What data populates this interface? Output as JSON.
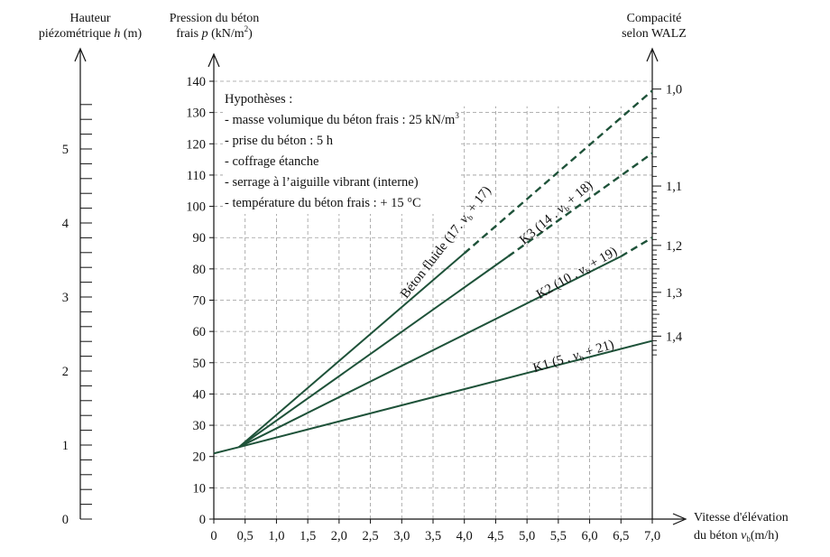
{
  "chart_data": {
    "type": "line",
    "x_axis": {
      "label_line1": "Vitesse d'élévation",
      "label_line2_prefix": "du béton ",
      "label_var": "v",
      "label_sub": "b",
      "label_unit": "(m/h)",
      "ticks": [
        "0",
        "0,5",
        "1,0",
        "1,5",
        "2,0",
        "2,5",
        "3,0",
        "3,5",
        "4,0",
        "4,5",
        "5,0",
        "5,5",
        "6,0",
        "6,5",
        "7,0"
      ],
      "range": [
        0,
        7.0
      ]
    },
    "y_axis": {
      "label_line1": "Pression du béton",
      "label_line2_prefix": "frais ",
      "label_var": "p",
      "label_unit_pre": " (kN/m",
      "label_unit_sup": "2",
      "label_unit_post": ")",
      "ticks": [
        "0",
        "10",
        "20",
        "30",
        "40",
        "50",
        "60",
        "70",
        "80",
        "90",
        "100",
        "110",
        "120",
        "130",
        "140"
      ],
      "range": [
        0,
        140
      ]
    },
    "left_axis": {
      "label_line1": "Hauteur",
      "label_line2_prefix": "piézométrique ",
      "label_var": "h",
      "label_unit": " (m)",
      "ticks": [
        "0",
        "1",
        "2",
        "3",
        "4",
        "5"
      ],
      "range": [
        0,
        5.6
      ]
    },
    "right_axis": {
      "label_line1": "Compacité",
      "label_line2": "selon WALZ",
      "ticks": [
        {
          "label": "1,0",
          "p": 137.5
        },
        {
          "label": "1,1",
          "p": 106.5
        },
        {
          "label": "1,2",
          "p": 87.5
        },
        {
          "label": "1,3",
          "p": 72.5
        },
        {
          "label": "1,4",
          "p": 58.5
        }
      ]
    },
    "grid": true,
    "base_line": {
      "x": [
        0,
        0.4
      ],
      "y": [
        21,
        23
      ]
    },
    "series": [
      {
        "name": "Béton fluide",
        "formula_coef": "17",
        "formula_const": "17",
        "x": [
          0.4,
          4.0
        ],
        "y": [
          23,
          85
        ],
        "dashed_x": [
          4.0,
          7.0
        ],
        "dashed_y": [
          85,
          137
        ]
      },
      {
        "name": "K3",
        "formula_coef": "14",
        "formula_const": "18",
        "x": [
          0.4,
          4.7
        ],
        "y": [
          23,
          84
        ],
        "dashed_x": [
          4.7,
          7.0
        ],
        "dashed_y": [
          84,
          117
        ]
      },
      {
        "name": "K2",
        "formula_coef": "10",
        "formula_const": "19",
        "x": [
          0.4,
          6.5
        ],
        "y": [
          23,
          84
        ],
        "dashed_x": [
          6.5,
          7.0
        ],
        "dashed_y": [
          84,
          90
        ]
      },
      {
        "name": "K1",
        "formula_coef": "5",
        "formula_const": "21",
        "x": [
          0.4,
          7.0
        ],
        "y": [
          23,
          57
        ]
      }
    ],
    "line_color": "#1e5239",
    "grid_color": "#9a9a9a"
  },
  "hypotheses": {
    "title": "Hypothèses :",
    "item1_pre": "- masse volumique du béton frais : 25 kN/m",
    "item1_sup": "3",
    "item2": "- prise du béton : 5 h",
    "item3": "- coffrage étanche",
    "item4": "- serrage à l’aiguille vibrant (interne)",
    "item5": "- température du béton frais : + 15 °C"
  },
  "labels": {
    "fluide_pre": "Béton fluide (17. ",
    "k3_pre": "K3 (14 . ",
    "k2_pre": "K2 (10 . ",
    "k1_pre": "K1 (5 . ",
    "var": "v",
    "sub": "b",
    "plus": " + ",
    "close": ")"
  }
}
